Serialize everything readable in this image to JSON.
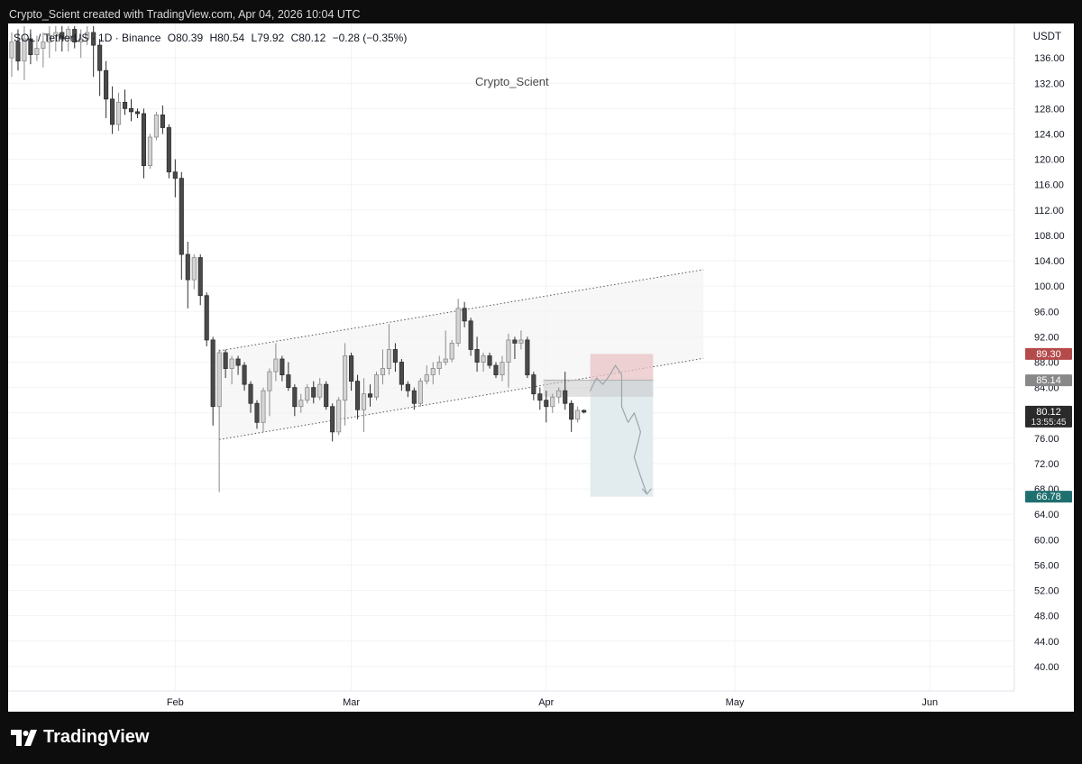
{
  "caption": "Crypto_Scient created with TradingView.com, Apr 04, 2026 10:04 UTC",
  "header": {
    "symbol": "SOL / TetherUS · 1D · Binance",
    "open": "O80.39",
    "high": "H80.54",
    "low": "L79.92",
    "close": "C80.12",
    "change": "−0.28 (−0.35%)"
  },
  "watermark_author": "Crypto_Scient",
  "currency": "USDT",
  "price_badges": {
    "stop": "89.30",
    "entry": "85.14",
    "last": "80.12",
    "countdown": "13:55:45",
    "target": "66.78"
  },
  "footer": {
    "brand": "TradingView"
  },
  "colors": {
    "background": "#ffffff",
    "bar": "#4a4a4a",
    "stop_zone": "#e9c3c6",
    "target_zone": "#dde9ec",
    "stop_badge": "#b54a4a",
    "entry_badge": "#888888",
    "target_badge": "#1f6f6f",
    "last_badge": "#2a2a2a"
  },
  "chart_data": {
    "type": "candlestick",
    "xlabel": "",
    "ylabel": "",
    "ylim": [
      37,
      141
    ],
    "y_ticks": [
      40,
      44,
      48,
      52,
      56,
      60,
      64,
      68,
      72,
      76,
      80,
      84,
      88,
      92,
      96,
      100,
      104,
      108,
      112,
      116,
      120,
      124,
      128,
      132,
      136
    ],
    "x_range": [
      "2026-01-06",
      "2026-06-09"
    ],
    "x_ticks": [
      {
        "label": "Feb",
        "date": "2026-02-01"
      },
      {
        "label": "Mar",
        "date": "2026-03-01"
      },
      {
        "label": "Apr",
        "date": "2026-04-01"
      },
      {
        "label": "May",
        "date": "2026-05-01"
      },
      {
        "label": "Jun",
        "date": "2026-06-01"
      }
    ],
    "grid": true,
    "candles": [
      {
        "date": "2026-01-06",
        "o": 136.0,
        "h": 140.0,
        "l": 133.0,
        "c": 138.5
      },
      {
        "date": "2026-01-07",
        "o": 138.5,
        "h": 140.5,
        "l": 134.0,
        "c": 135.5
      },
      {
        "date": "2026-01-08",
        "o": 135.5,
        "h": 141.0,
        "l": 132.5,
        "c": 139.0
      },
      {
        "date": "2026-01-09",
        "o": 139.0,
        "h": 140.5,
        "l": 135.0,
        "c": 136.5
      },
      {
        "date": "2026-01-10",
        "o": 136.5,
        "h": 139.5,
        "l": 135.5,
        "c": 137.5
      },
      {
        "date": "2026-01-11",
        "o": 137.5,
        "h": 140.0,
        "l": 134.5,
        "c": 138.5
      },
      {
        "date": "2026-01-12",
        "o": 138.5,
        "h": 141.0,
        "l": 136.0,
        "c": 139.5
      },
      {
        "date": "2026-01-13",
        "o": 139.5,
        "h": 141.0,
        "l": 137.0,
        "c": 140.0
      },
      {
        "date": "2026-01-14",
        "o": 140.0,
        "h": 141.0,
        "l": 137.0,
        "c": 139.0
      },
      {
        "date": "2026-01-15",
        "o": 139.0,
        "h": 141.0,
        "l": 137.0,
        "c": 140.5
      },
      {
        "date": "2026-01-16",
        "o": 140.5,
        "h": 141.0,
        "l": 137.5,
        "c": 138.5
      },
      {
        "date": "2026-01-17",
        "o": 138.5,
        "h": 140.5,
        "l": 136.0,
        "c": 139.0
      },
      {
        "date": "2026-01-18",
        "o": 139.0,
        "h": 141.0,
        "l": 138.0,
        "c": 140.0
      },
      {
        "date": "2026-01-19",
        "o": 140.0,
        "h": 141.0,
        "l": 133.0,
        "c": 138.0
      },
      {
        "date": "2026-01-20",
        "o": 138.0,
        "h": 139.0,
        "l": 130.0,
        "c": 134.0
      },
      {
        "date": "2026-01-21",
        "o": 134.0,
        "h": 135.5,
        "l": 126.5,
        "c": 129.5
      },
      {
        "date": "2026-01-22",
        "o": 129.5,
        "h": 131.5,
        "l": 124.0,
        "c": 125.5
      },
      {
        "date": "2026-01-23",
        "o": 125.5,
        "h": 130.5,
        "l": 124.5,
        "c": 129.0
      },
      {
        "date": "2026-01-24",
        "o": 129.0,
        "h": 131.0,
        "l": 127.0,
        "c": 128.0
      },
      {
        "date": "2026-01-25",
        "o": 128.0,
        "h": 129.5,
        "l": 126.0,
        "c": 127.5
      },
      {
        "date": "2026-01-26",
        "o": 127.5,
        "h": 128.0,
        "l": 126.5,
        "c": 127.2
      },
      {
        "date": "2026-01-27",
        "o": 127.2,
        "h": 128.0,
        "l": 117.0,
        "c": 119.0
      },
      {
        "date": "2026-01-28",
        "o": 119.0,
        "h": 124.0,
        "l": 118.5,
        "c": 123.5
      },
      {
        "date": "2026-01-29",
        "o": 123.5,
        "h": 127.5,
        "l": 123.0,
        "c": 127.0
      },
      {
        "date": "2026-01-30",
        "o": 127.0,
        "h": 128.5,
        "l": 124.0,
        "c": 125.0
      },
      {
        "date": "2026-01-31",
        "o": 125.0,
        "h": 125.5,
        "l": 117.0,
        "c": 118.0
      },
      {
        "date": "2026-02-01",
        "o": 118.0,
        "h": 120.0,
        "l": 114.0,
        "c": 117.0
      },
      {
        "date": "2026-02-02",
        "o": 117.0,
        "h": 118.0,
        "l": 101.0,
        "c": 105.0
      },
      {
        "date": "2026-02-03",
        "o": 105.0,
        "h": 107.0,
        "l": 96.5,
        "c": 101.0
      },
      {
        "date": "2026-02-04",
        "o": 101.0,
        "h": 105.0,
        "l": 99.5,
        "c": 104.5
      },
      {
        "date": "2026-02-05",
        "o": 104.5,
        "h": 105.0,
        "l": 97.0,
        "c": 98.5
      },
      {
        "date": "2026-02-06",
        "o": 98.5,
        "h": 99.0,
        "l": 90.5,
        "c": 91.5
      },
      {
        "date": "2026-02-07",
        "o": 91.5,
        "h": 92.0,
        "l": 78.0,
        "c": 81.0
      },
      {
        "date": "2026-02-08",
        "o": 81.0,
        "h": 90.0,
        "l": 67.5,
        "c": 89.5
      },
      {
        "date": "2026-02-09",
        "o": 89.5,
        "h": 90.0,
        "l": 85.5,
        "c": 87.0
      },
      {
        "date": "2026-02-10",
        "o": 87.0,
        "h": 89.0,
        "l": 84.5,
        "c": 88.5
      },
      {
        "date": "2026-02-11",
        "o": 88.5,
        "h": 89.0,
        "l": 86.0,
        "c": 87.5
      },
      {
        "date": "2026-02-12",
        "o": 87.5,
        "h": 88.0,
        "l": 83.5,
        "c": 84.5
      },
      {
        "date": "2026-02-13",
        "o": 84.5,
        "h": 85.0,
        "l": 80.0,
        "c": 81.5
      },
      {
        "date": "2026-02-14",
        "o": 81.5,
        "h": 82.0,
        "l": 77.5,
        "c": 78.5
      },
      {
        "date": "2026-02-15",
        "o": 78.5,
        "h": 84.0,
        "l": 77.0,
        "c": 83.5
      },
      {
        "date": "2026-02-16",
        "o": 83.5,
        "h": 87.0,
        "l": 79.5,
        "c": 86.5
      },
      {
        "date": "2026-02-17",
        "o": 86.5,
        "h": 91.0,
        "l": 85.0,
        "c": 88.5
      },
      {
        "date": "2026-02-18",
        "o": 88.5,
        "h": 89.0,
        "l": 85.0,
        "c": 86.0
      },
      {
        "date": "2026-02-19",
        "o": 86.0,
        "h": 88.0,
        "l": 83.5,
        "c": 84.0
      },
      {
        "date": "2026-02-20",
        "o": 84.0,
        "h": 84.5,
        "l": 79.5,
        "c": 81.0
      },
      {
        "date": "2026-02-21",
        "o": 81.0,
        "h": 83.0,
        "l": 80.0,
        "c": 82.0
      },
      {
        "date": "2026-02-22",
        "o": 82.0,
        "h": 84.5,
        "l": 81.5,
        "c": 84.0
      },
      {
        "date": "2026-02-23",
        "o": 84.0,
        "h": 85.0,
        "l": 81.5,
        "c": 82.5
      },
      {
        "date": "2026-02-24",
        "o": 82.5,
        "h": 85.5,
        "l": 82.0,
        "c": 84.5
      },
      {
        "date": "2026-02-25",
        "o": 84.5,
        "h": 85.0,
        "l": 80.5,
        "c": 81.0
      },
      {
        "date": "2026-02-26",
        "o": 81.0,
        "h": 81.5,
        "l": 75.5,
        "c": 77.0
      },
      {
        "date": "2026-02-27",
        "o": 77.0,
        "h": 82.5,
        "l": 76.5,
        "c": 82.0
      },
      {
        "date": "2026-02-28",
        "o": 82.0,
        "h": 91.0,
        "l": 78.0,
        "c": 89.0
      },
      {
        "date": "2026-03-01",
        "o": 89.0,
        "h": 89.5,
        "l": 83.5,
        "c": 85.0
      },
      {
        "date": "2026-03-02",
        "o": 85.0,
        "h": 86.0,
        "l": 79.0,
        "c": 80.5
      },
      {
        "date": "2026-03-03",
        "o": 80.5,
        "h": 85.5,
        "l": 77.0,
        "c": 83.0
      },
      {
        "date": "2026-03-04",
        "o": 83.0,
        "h": 84.5,
        "l": 81.0,
        "c": 82.5
      },
      {
        "date": "2026-03-05",
        "o": 82.5,
        "h": 86.5,
        "l": 82.0,
        "c": 86.0
      },
      {
        "date": "2026-03-06",
        "o": 86.0,
        "h": 90.0,
        "l": 84.5,
        "c": 87.0
      },
      {
        "date": "2026-03-07",
        "o": 87.0,
        "h": 94.0,
        "l": 86.0,
        "c": 90.0
      },
      {
        "date": "2026-03-08",
        "o": 90.0,
        "h": 91.0,
        "l": 86.5,
        "c": 88.0
      },
      {
        "date": "2026-03-09",
        "o": 88.0,
        "h": 88.5,
        "l": 83.5,
        "c": 84.5
      },
      {
        "date": "2026-03-10",
        "o": 84.5,
        "h": 85.0,
        "l": 82.5,
        "c": 83.5
      },
      {
        "date": "2026-03-11",
        "o": 83.5,
        "h": 84.0,
        "l": 80.5,
        "c": 81.5
      },
      {
        "date": "2026-03-12",
        "o": 81.5,
        "h": 85.5,
        "l": 81.0,
        "c": 85.0
      },
      {
        "date": "2026-03-13",
        "o": 85.0,
        "h": 87.5,
        "l": 84.5,
        "c": 86.0
      },
      {
        "date": "2026-03-14",
        "o": 86.0,
        "h": 88.0,
        "l": 84.5,
        "c": 87.0
      },
      {
        "date": "2026-03-15",
        "o": 87.0,
        "h": 89.0,
        "l": 86.0,
        "c": 88.0
      },
      {
        "date": "2026-03-16",
        "o": 88.0,
        "h": 93.0,
        "l": 87.5,
        "c": 88.5
      },
      {
        "date": "2026-03-17",
        "o": 88.5,
        "h": 91.5,
        "l": 88.0,
        "c": 91.0
      },
      {
        "date": "2026-03-18",
        "o": 91.0,
        "h": 98.0,
        "l": 90.5,
        "c": 96.5
      },
      {
        "date": "2026-03-19",
        "o": 96.5,
        "h": 97.5,
        "l": 93.5,
        "c": 94.5
      },
      {
        "date": "2026-03-20",
        "o": 94.5,
        "h": 95.0,
        "l": 89.0,
        "c": 90.0
      },
      {
        "date": "2026-03-21",
        "o": 90.0,
        "h": 92.0,
        "l": 86.5,
        "c": 88.0
      },
      {
        "date": "2026-03-22",
        "o": 88.0,
        "h": 89.5,
        "l": 86.5,
        "c": 89.0
      },
      {
        "date": "2026-03-23",
        "o": 89.0,
        "h": 89.5,
        "l": 87.0,
        "c": 87.5
      },
      {
        "date": "2026-03-24",
        "o": 87.5,
        "h": 88.0,
        "l": 85.5,
        "c": 86.0
      },
      {
        "date": "2026-03-25",
        "o": 86.0,
        "h": 89.0,
        "l": 85.0,
        "c": 88.0
      },
      {
        "date": "2026-03-26",
        "o": 88.0,
        "h": 92.5,
        "l": 84.0,
        "c": 91.5
      },
      {
        "date": "2026-03-27",
        "o": 91.5,
        "h": 92.0,
        "l": 88.5,
        "c": 91.0
      },
      {
        "date": "2026-03-28",
        "o": 91.0,
        "h": 93.0,
        "l": 90.0,
        "c": 91.5
      },
      {
        "date": "2026-03-29",
        "o": 91.5,
        "h": 92.0,
        "l": 85.5,
        "c": 86.0
      },
      {
        "date": "2026-03-30",
        "o": 86.0,
        "h": 86.5,
        "l": 82.0,
        "c": 83.0
      },
      {
        "date": "2026-03-31",
        "o": 83.0,
        "h": 84.0,
        "l": 80.5,
        "c": 82.0
      },
      {
        "date": "2026-04-01",
        "o": 82.0,
        "h": 83.5,
        "l": 78.5,
        "c": 81.0
      },
      {
        "date": "2026-04-02",
        "o": 81.0,
        "h": 83.0,
        "l": 80.0,
        "c": 82.5
      },
      {
        "date": "2026-04-03",
        "o": 82.5,
        "h": 84.0,
        "l": 81.5,
        "c": 83.5
      },
      {
        "date": "2026-04-04",
        "o": 83.5,
        "h": 86.5,
        "l": 80.5,
        "c": 81.5
      },
      {
        "date": "2026-04-05",
        "o": 81.5,
        "h": 82.0,
        "l": 77.0,
        "c": 79.0
      },
      {
        "date": "2026-04-06",
        "o": 79.0,
        "h": 81.0,
        "l": 78.5,
        "c": 80.4
      },
      {
        "date": "2026-04-07",
        "o": 80.39,
        "h": 80.54,
        "l": 79.92,
        "c": 80.12
      }
    ],
    "channel": {
      "upper_start": {
        "date": "2026-02-08",
        "value": 89.8
      },
      "upper_end": {
        "date": "2026-04-26",
        "value": 102.6
      },
      "lower_start": {
        "date": "2026-02-08",
        "value": 75.8
      },
      "lower_end": {
        "date": "2026-04-26",
        "value": 88.6
      }
    },
    "position": {
      "start_date": "2026-04-08",
      "end_date": "2026-04-18",
      "stop": 89.3,
      "entry": 85.14,
      "target": 66.78
    },
    "projection_path": [
      {
        "date": "2026-04-08",
        "value": 83.5
      },
      {
        "date": "2026-04-09",
        "value": 85.5
      },
      {
        "date": "2026-04-10",
        "value": 84.5
      },
      {
        "date": "2026-04-11",
        "value": 85.8
      },
      {
        "date": "2026-04-12",
        "value": 87.5
      },
      {
        "date": "2026-04-13",
        "value": 86.0
      },
      {
        "date": "2026-04-13",
        "value": 81.0
      },
      {
        "date": "2026-04-14",
        "value": 78.5
      },
      {
        "date": "2026-04-15",
        "value": 80.0
      },
      {
        "date": "2026-04-16",
        "value": 77.0
      },
      {
        "date": "2026-04-15",
        "value": 73.0
      },
      {
        "date": "2026-04-16",
        "value": 70.0
      },
      {
        "date": "2026-04-17",
        "value": 67.2
      }
    ]
  }
}
